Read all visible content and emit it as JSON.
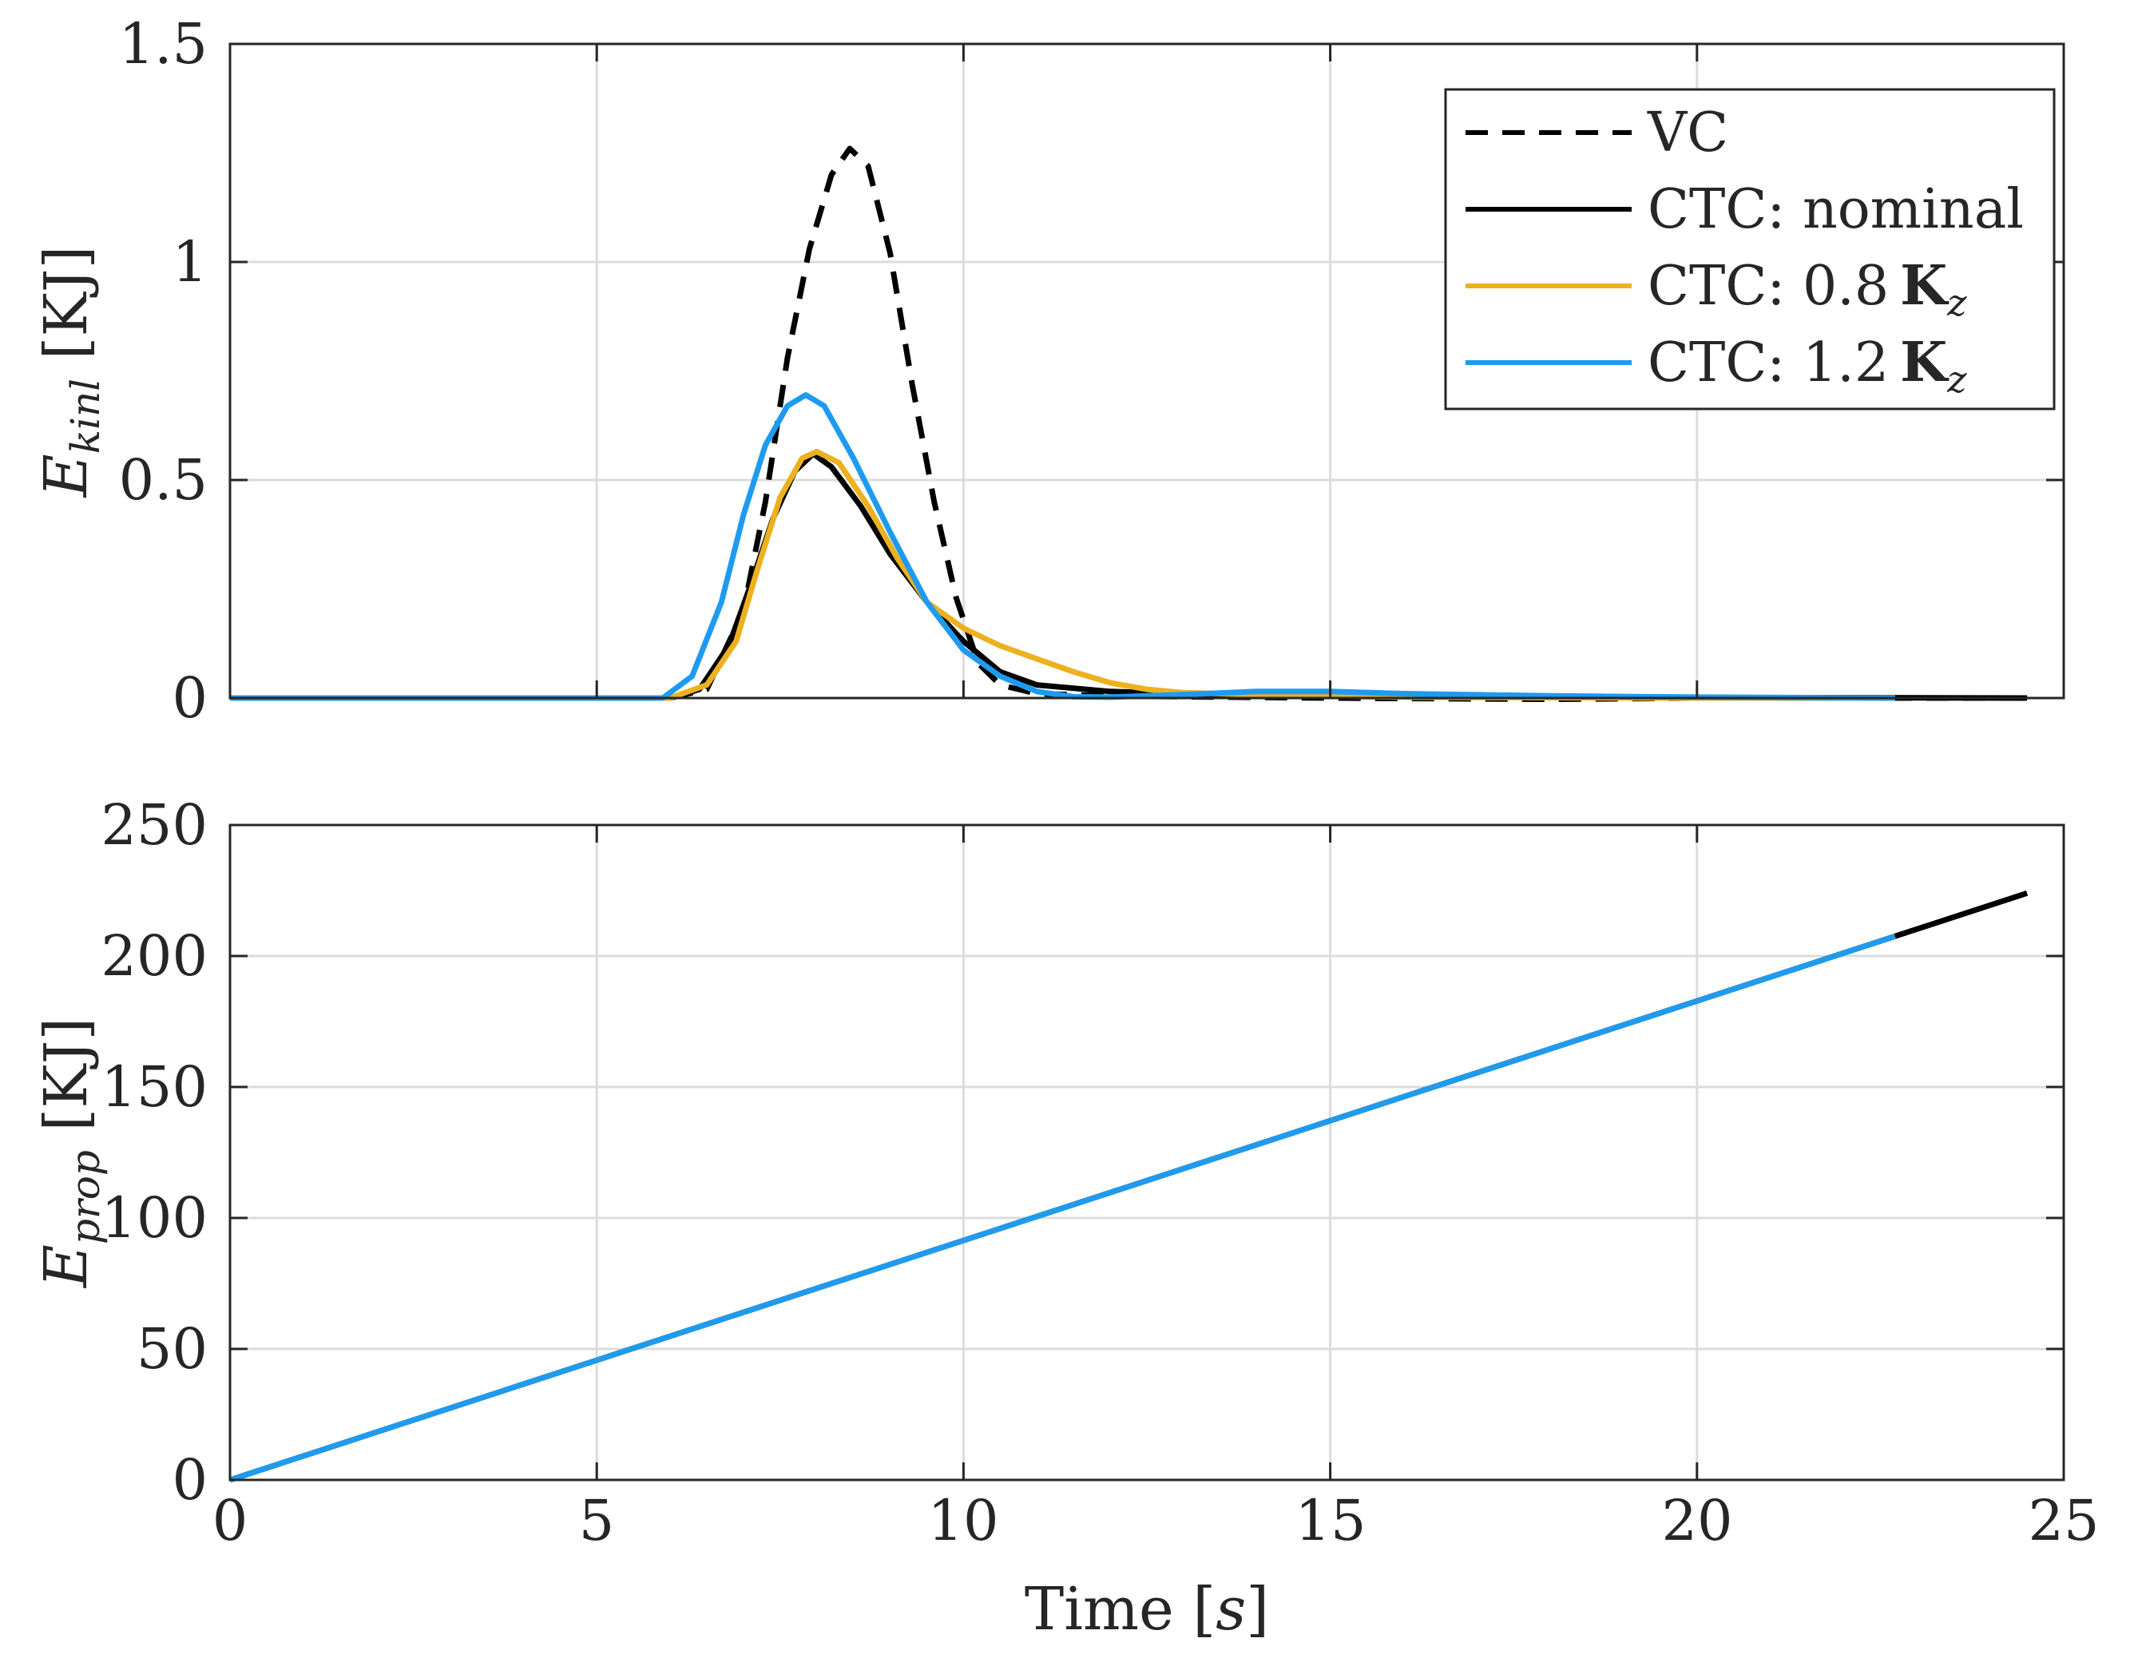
{
  "chart_data": [
    {
      "type": "line",
      "panel": "top",
      "ylabel": {
        "symbol": "E",
        "subscript": "kinl",
        "unit": "[KJ]"
      },
      "xlim": [
        0,
        25
      ],
      "ylim": [
        0,
        1.5
      ],
      "yticks": [
        "0",
        "0.5",
        "1",
        "1.5"
      ],
      "xticks": [
        0,
        5,
        10,
        15,
        20,
        25
      ],
      "grid": true,
      "legend": {
        "position": "top-right",
        "entries": [
          {
            "prefix": "VC",
            "bold": "",
            "subscript": ""
          },
          {
            "prefix": "CTC: nominal",
            "bold": "",
            "subscript": ""
          },
          {
            "prefix": "CTC: 0.8",
            "bold": "K",
            "subscript": "z"
          },
          {
            "prefix": "CTC: 1.2",
            "bold": "K",
            "subscript": "z"
          }
        ]
      },
      "series": [
        {
          "name": "VC",
          "color": "#000000",
          "dash": true,
          "x": [
            0,
            6.0,
            6.5,
            7.0,
            7.3,
            7.6,
            7.9,
            8.2,
            8.45,
            8.7,
            9.0,
            9.3,
            9.6,
            9.9,
            10.2,
            10.5,
            11.0,
            12.0,
            13.0,
            15.0,
            18.0,
            20.0,
            24.5
          ],
          "y": [
            0,
            0,
            0.02,
            0.2,
            0.45,
            0.78,
            1.03,
            1.2,
            1.26,
            1.22,
            1.02,
            0.72,
            0.45,
            0.23,
            0.08,
            0.03,
            0.01,
            0.005,
            0.003,
            0.0,
            -0.003,
            0.0,
            0.0
          ]
        },
        {
          "name": "CTC: nominal",
          "color": "#000000",
          "dash": false,
          "x": [
            0,
            6.0,
            6.4,
            6.8,
            7.1,
            7.4,
            7.7,
            7.95,
            8.2,
            8.6,
            9.0,
            9.5,
            10.0,
            10.5,
            11.0,
            12.0,
            13.0,
            14.0,
            15.0,
            16.0,
            18.0,
            20.0,
            22.0,
            24.5
          ],
          "y": [
            0,
            0,
            0.02,
            0.12,
            0.26,
            0.41,
            0.52,
            0.56,
            0.53,
            0.44,
            0.33,
            0.22,
            0.13,
            0.06,
            0.03,
            0.015,
            0.01,
            0.008,
            0.006,
            0.004,
            0.002,
            0.001,
            0.001,
            0.0
          ]
        },
        {
          "name": "CTC: 0.8 Kz",
          "color": "#EDB120",
          "dash": false,
          "x": [
            0,
            6.0,
            6.5,
            6.9,
            7.2,
            7.5,
            7.8,
            8.0,
            8.3,
            8.7,
            9.1,
            9.5,
            10.0,
            10.5,
            11.0,
            11.5,
            12.0,
            12.5,
            13.0,
            14.0,
            15.0,
            16.0,
            18.0,
            20.0,
            22.7
          ],
          "y": [
            0,
            0,
            0.03,
            0.13,
            0.3,
            0.46,
            0.55,
            0.565,
            0.54,
            0.44,
            0.32,
            0.22,
            0.16,
            0.12,
            0.09,
            0.06,
            0.035,
            0.02,
            0.012,
            0.008,
            0.004,
            0.002,
            0.001,
            0.0,
            0.0
          ]
        },
        {
          "name": "CTC: 1.2 Kz",
          "color": "#1E9BF0",
          "dash": false,
          "x": [
            0,
            5.9,
            6.3,
            6.7,
            7.0,
            7.3,
            7.6,
            7.85,
            8.1,
            8.5,
            9.0,
            9.5,
            10.0,
            10.5,
            11.0,
            11.5,
            12.0,
            13.0,
            14.0,
            15.0,
            16.0,
            18.0,
            20.0,
            22.7
          ],
          "y": [
            0,
            0,
            0.05,
            0.22,
            0.42,
            0.58,
            0.67,
            0.695,
            0.67,
            0.55,
            0.38,
            0.22,
            0.11,
            0.05,
            0.015,
            0.003,
            0.002,
            0.008,
            0.015,
            0.015,
            0.01,
            0.005,
            0.002,
            0.0
          ]
        }
      ]
    },
    {
      "type": "line",
      "panel": "bottom",
      "ylabel": {
        "symbol": "E",
        "subscript": "prop",
        "unit": "[KJ]"
      },
      "xlabel": {
        "text": "Time",
        "unit_symbol": "s"
      },
      "xlim": [
        0,
        25
      ],
      "ylim": [
        0,
        250
      ],
      "yticks": [
        "0",
        "50",
        "100",
        "150",
        "200",
        "250"
      ],
      "xticks": [
        0,
        5,
        10,
        15,
        20,
        25
      ],
      "xticklabels": [
        "0",
        "5",
        "10",
        "15",
        "20",
        "25"
      ],
      "grid": true,
      "series": [
        {
          "name": "CTC: nominal",
          "color": "#000000",
          "x": [
            0,
            24.5
          ],
          "y": [
            0,
            224
          ]
        },
        {
          "name": "CTC: 0.8 Kz",
          "color": "#EDB120",
          "x": [
            0,
            22.7
          ],
          "y": [
            0,
            207.5
          ]
        },
        {
          "name": "CTC: 1.2 Kz",
          "color": "#1E9BF0",
          "x": [
            0,
            22.7
          ],
          "y": [
            0,
            207.5
          ]
        }
      ]
    }
  ]
}
